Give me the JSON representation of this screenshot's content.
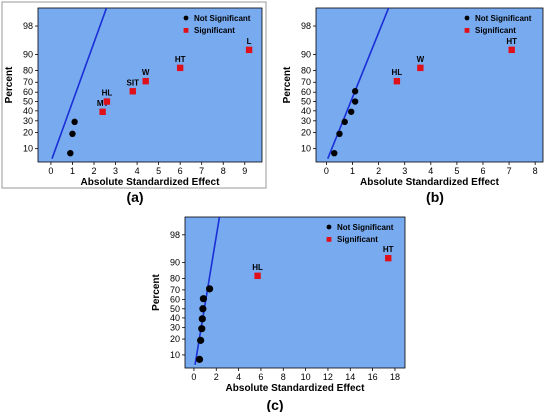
{
  "chart_data": [
    {
      "type": "scatter",
      "caption": "(a)",
      "xlabel": "Absolute Standardized Effect",
      "ylabel": "Percent",
      "xlim": [
        -0.6,
        9.8
      ],
      "xticks": [
        0,
        1,
        2,
        3,
        4,
        5,
        6,
        7,
        8,
        9
      ],
      "yticks": [
        10,
        20,
        30,
        40,
        50,
        60,
        70,
        80,
        90,
        98
      ],
      "legend": {
        "position": "top-right",
        "entries": [
          "Not Significant",
          "Significant"
        ]
      },
      "fit_line": [
        [
          0.05,
          6
        ],
        [
          2.6,
          100
        ]
      ],
      "not_significant": [
        {
          "x": 0.9,
          "y": 8
        },
        {
          "x": 1.0,
          "y": 19
        },
        {
          "x": 1.1,
          "y": 29
        }
      ],
      "significant": [
        {
          "label": "MT",
          "x": 2.4,
          "y": 39
        },
        {
          "label": "HL",
          "x": 2.6,
          "y": 50
        },
        {
          "label": "SIT",
          "x": 3.8,
          "y": 61
        },
        {
          "label": "W",
          "x": 4.4,
          "y": 71
        },
        {
          "label": "HT",
          "x": 6.0,
          "y": 82
        },
        {
          "label": "L",
          "x": 9.2,
          "y": 92
        }
      ]
    },
    {
      "type": "scatter",
      "caption": "(b)",
      "xlabel": "Absolute Standardized Effect",
      "ylabel": "Percent",
      "xlim": [
        -0.4,
        8.3
      ],
      "xticks": [
        0,
        1,
        2,
        3,
        4,
        5,
        6,
        7,
        8
      ],
      "yticks": [
        10,
        20,
        30,
        40,
        50,
        60,
        70,
        80,
        90,
        98
      ],
      "legend": {
        "position": "top-right",
        "entries": [
          "Not Significant",
          "Significant"
        ]
      },
      "fit_line": [
        [
          0.05,
          6
        ],
        [
          2.4,
          100
        ]
      ],
      "not_significant": [
        {
          "x": 0.3,
          "y": 8
        },
        {
          "x": 0.5,
          "y": 19
        },
        {
          "x": 0.7,
          "y": 29
        },
        {
          "x": 0.95,
          "y": 39
        },
        {
          "x": 1.1,
          "y": 50
        },
        {
          "x": 1.1,
          "y": 61
        }
      ],
      "significant": [
        {
          "label": "HL",
          "x": 2.7,
          "y": 71
        },
        {
          "label": "W",
          "x": 3.6,
          "y": 82
        },
        {
          "label": "HT",
          "x": 7.1,
          "y": 92
        }
      ]
    },
    {
      "type": "scatter",
      "caption": "(c)",
      "xlabel": "Absolute Standardized Effect",
      "ylabel": "Percent",
      "xlim": [
        -0.8,
        18.9
      ],
      "xticks": [
        0,
        2,
        4,
        6,
        8,
        10,
        12,
        14,
        16,
        18
      ],
      "yticks": [
        10,
        20,
        30,
        40,
        50,
        60,
        70,
        80,
        90,
        98
      ],
      "legend": {
        "position": "top-right",
        "entries": [
          "Not Significant",
          "Significant"
        ]
      },
      "fit_line": [
        [
          0.1,
          6
        ],
        [
          2.3,
          100
        ]
      ],
      "not_significant": [
        {
          "x": 0.5,
          "y": 8
        },
        {
          "x": 0.6,
          "y": 19
        },
        {
          "x": 0.7,
          "y": 29
        },
        {
          "x": 0.75,
          "y": 39
        },
        {
          "x": 0.8,
          "y": 50
        },
        {
          "x": 0.85,
          "y": 61
        },
        {
          "x": 1.4,
          "y": 71
        }
      ],
      "significant": [
        {
          "label": "HL",
          "x": 5.7,
          "y": 82
        },
        {
          "label": "HT",
          "x": 17.4,
          "y": 92
        }
      ]
    }
  ]
}
